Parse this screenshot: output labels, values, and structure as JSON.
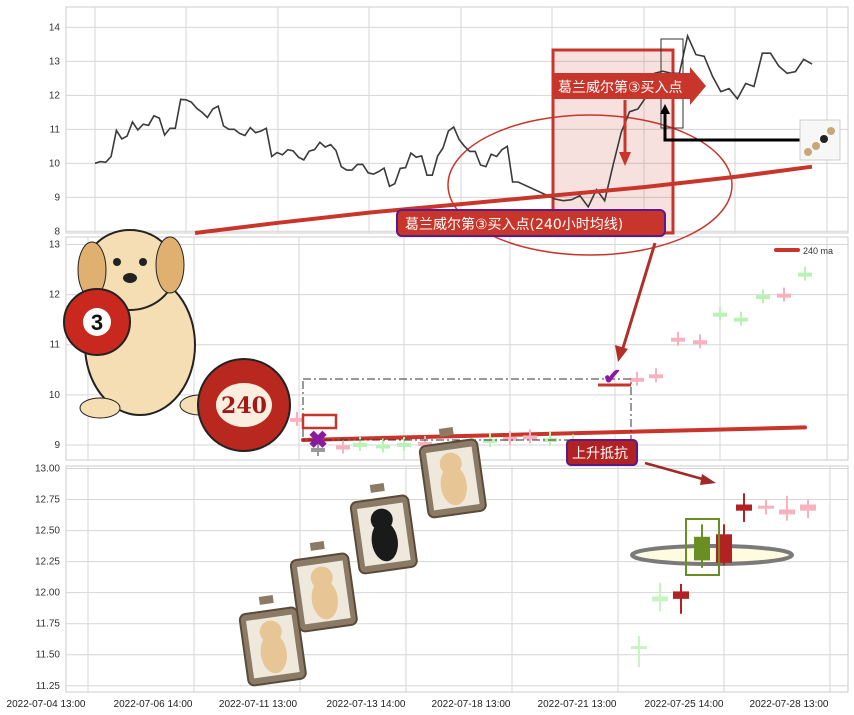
{
  "chart_data": [
    {
      "type": "line",
      "panel": "top",
      "yticks": [
        8,
        9,
        10,
        11,
        12,
        13,
        14
      ],
      "ylim": [
        7.95,
        14.6
      ],
      "grid": true,
      "series": [
        {
          "values": [
            10.0,
            10.05,
            10.03,
            10.2,
            10.97,
            10.72,
            10.8,
            11.22,
            10.98,
            11.15,
            11.12,
            11.4,
            11.33,
            10.83,
            11.03,
            11.03,
            11.88,
            11.87,
            11.8,
            11.62,
            11.5,
            11.35,
            11.6,
            11.68,
            11.1,
            11.0,
            11.0,
            10.88,
            10.82,
            11.05,
            10.9,
            10.95,
            11.03,
            10.2,
            10.32,
            10.25,
            10.4,
            10.37,
            10.18,
            10.1,
            10.36,
            10.4,
            10.62,
            10.48,
            10.55,
            10.38,
            9.9,
            9.8,
            9.8,
            9.97,
            9.97,
            9.72,
            9.68,
            9.76,
            9.86,
            9.32,
            9.4,
            9.85,
            9.87,
            10.3,
            10.18,
            10.22,
            9.65,
            9.65,
            10.22,
            10.45,
            10.95,
            11.07,
            10.7,
            10.5,
            10.35,
            10.35,
            9.95,
            9.9,
            10.27,
            10.2,
            10.4,
            10.5,
            9.45,
            9.45,
            8.95,
            8.9,
            8.93,
            9.05,
            8.72,
            9.23,
            8.9,
            9.94,
            10.92,
            11.52,
            11.6,
            11.96,
            12.65,
            12.71,
            12.65,
            12.65,
            13.75,
            13.2,
            13.15,
            12.56,
            12.11,
            12.2,
            11.9,
            12.35,
            12.26,
            13.24,
            13.24,
            12.86,
            12.65,
            12.7,
            13.06,
            12.92
          ],
          "color": "#3a3a3a"
        },
        {
          "values": [
            7.9,
            8.25,
            8.55,
            8.8,
            9.05,
            9.3,
            9.6,
            9.9
          ],
          "color": "#c8352b"
        }
      ],
      "annotations": [
        "葛兰威尔第③买入点",
        "葛兰威尔第③买入点(240小时均线)"
      ]
    },
    {
      "type": "candlestick",
      "panel": "middle",
      "yticks": [
        9,
        10,
        11,
        12,
        13
      ],
      "ylim": [
        8.7,
        13.15
      ],
      "grid": true,
      "legend": {
        "label": "240 ma",
        "position": "top-right",
        "color": "#c8352b"
      },
      "ma_240": [
        9.1,
        9.35
      ],
      "candles": [
        {
          "value": 10.45,
          "color": "#f6b3bf"
        },
        {
          "value": 10.45,
          "color": "#f6b3bf"
        },
        {
          "value": 9.5,
          "color": "#f6b3bf"
        },
        {
          "value": 8.9,
          "color": "#9a9a9a"
        },
        {
          "value": 8.95,
          "color": "#f6b3bf"
        },
        {
          "value": 9.0,
          "color": "#b9f2b4"
        },
        {
          "value": 8.97,
          "color": "#b9f2b4"
        },
        {
          "value": 9.0,
          "color": "#b9f2b4"
        },
        {
          "value": 9.02,
          "color": "#f6b3bf"
        },
        {
          "value": 8.85,
          "color": "#f6b3bf"
        },
        {
          "value": 8.8,
          "color": "#b9f2b4"
        },
        {
          "value": 9.08,
          "color": "#b9f2b4"
        },
        {
          "value": 9.12,
          "color": "#f6b3bf"
        },
        {
          "value": 9.15,
          "color": "#f6b3bf"
        },
        {
          "value": 9.1,
          "color": "#b9f2b4"
        },
        {
          "value": 9.05,
          "color": "#b9f2b4"
        },
        {
          "value": 8.95,
          "color": "#b9f2b4"
        },
        {
          "value": 10.3,
          "color": "#f6b3bf"
        },
        {
          "value": 10.37,
          "color": "#f6b3bf"
        },
        {
          "value": 11.1,
          "color": "#f6b3bf"
        },
        {
          "value": 11.05,
          "color": "#f6b3bf"
        },
        {
          "value": 11.6,
          "color": "#b9f2b4"
        },
        {
          "value": 11.5,
          "color": "#b9f2b4"
        },
        {
          "value": 11.95,
          "color": "#b9f2b4"
        },
        {
          "value": 11.98,
          "color": "#f6b3bf"
        },
        {
          "value": 12.4,
          "color": "#b9f2b4"
        }
      ],
      "annotations": [
        "上升抵抗"
      ],
      "ball_labels": [
        "3",
        "240"
      ]
    },
    {
      "type": "candlestick",
      "panel": "bottom",
      "yticks": [
        "11.25",
        "11.50",
        "11.75",
        "12.00",
        "12.25",
        "12.50",
        "12.75",
        "13.00"
      ],
      "ylim": [
        11.2,
        13.02
      ],
      "grid": true,
      "xticks": [
        "2022-07-04 13:00",
        "2022-07-06 14:00",
        "2022-07-11 13:00",
        "2022-07-13 14:00",
        "2022-07-18 13:00",
        "2022-07-21 13:00",
        "2022-07-25 14:00",
        "2022-07-28 13:00"
      ],
      "candles": [
        {
          "open": 11.55,
          "close": 11.57,
          "low": 11.4,
          "high": 11.65,
          "color": "#c6f5c0"
        },
        {
          "open": 11.93,
          "close": 11.97,
          "low": 11.85,
          "high": 12.08,
          "color": "#c6f5c0"
        },
        {
          "open": 12.01,
          "close": 11.95,
          "low": 11.83,
          "high": 12.07,
          "color": "#b22222"
        },
        {
          "open": 12.26,
          "close": 12.45,
          "low": 12.2,
          "high": 12.55,
          "color": "#6b8e23"
        },
        {
          "open": 12.47,
          "close": 12.24,
          "low": 12.22,
          "high": 12.55,
          "color": "#b22222"
        },
        {
          "open": 12.71,
          "close": 12.66,
          "low": 12.57,
          "high": 12.8,
          "color": "#b22222"
        },
        {
          "open": 12.7,
          "close": 12.69,
          "low": 12.63,
          "high": 12.75,
          "color": "#f6b3bf"
        },
        {
          "open": 12.67,
          "close": 12.63,
          "low": 12.58,
          "high": 12.78,
          "color": "#f6b3bf"
        },
        {
          "open": 12.71,
          "close": 12.66,
          "low": 12.6,
          "high": 12.75,
          "color": "#f6b3bf"
        }
      ]
    }
  ]
}
